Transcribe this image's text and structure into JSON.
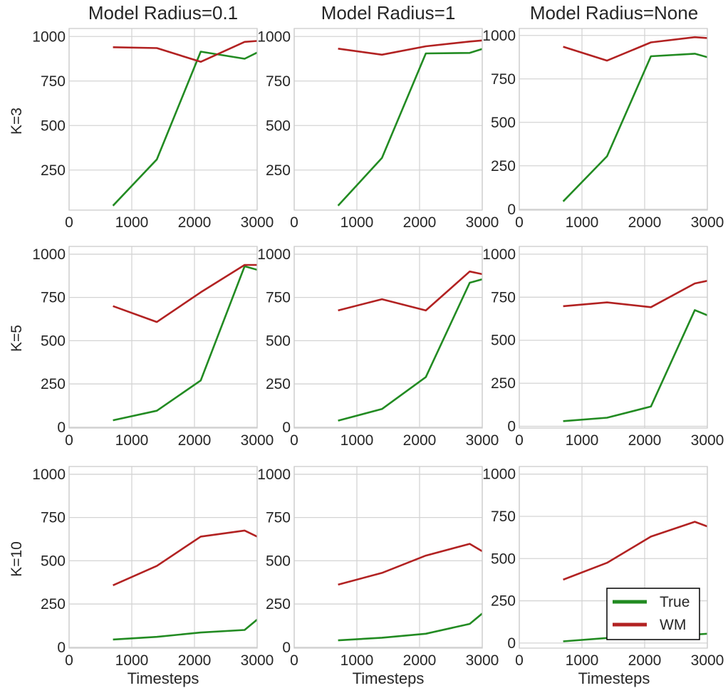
{
  "figure": {
    "col_titles": [
      "Model Radius=0.1",
      "Model Radius=1",
      "Model Radius=None"
    ],
    "row_labels": [
      "K=3",
      "K=5",
      "K=10"
    ],
    "xlabel": "Timesteps"
  },
  "legend": {
    "placement": "lower-right of bottom-right panel",
    "entries": [
      {
        "label": "True",
        "color": "#228b22"
      },
      {
        "label": "WM",
        "color": "#b22222"
      }
    ]
  },
  "chart_data": [
    {
      "type": "line",
      "title": "Model Radius=0.1",
      "ylabel": "K=3",
      "xlabel": "",
      "x": [
        700,
        1400,
        2100,
        2800,
        3000
      ],
      "series": [
        {
          "name": "True",
          "values": [
            50,
            310,
            915,
            875,
            910
          ]
        },
        {
          "name": "WM",
          "values": [
            940,
            935,
            858,
            970,
            975
          ]
        }
      ],
      "xlim": [
        0,
        3000
      ],
      "ylim": [
        25,
        1045
      ],
      "xticks": [
        0,
        1000,
        2000,
        3000
      ],
      "yticks": [
        250,
        500,
        750,
        1000
      ],
      "grid": true
    },
    {
      "type": "line",
      "title": "Model Radius=1",
      "ylabel": "",
      "xlabel": "",
      "x": [
        700,
        1400,
        2100,
        2800,
        3000
      ],
      "series": [
        {
          "name": "True",
          "values": [
            50,
            318,
            905,
            908,
            930
          ]
        },
        {
          "name": "WM",
          "values": [
            932,
            898,
            945,
            972,
            978
          ]
        }
      ],
      "xlim": [
        0,
        3000
      ],
      "ylim": [
        25,
        1045
      ],
      "xticks": [
        0,
        1000,
        2000,
        3000
      ],
      "yticks": [
        250,
        500,
        750,
        1000
      ],
      "grid": true
    },
    {
      "type": "line",
      "title": "Model Radius=None",
      "ylabel": "",
      "xlabel": "",
      "x": [
        700,
        1400,
        2100,
        2800,
        3000
      ],
      "series": [
        {
          "name": "True",
          "values": [
            45,
            305,
            880,
            895,
            875
          ]
        },
        {
          "name": "WM",
          "values": [
            935,
            855,
            960,
            990,
            985
          ]
        }
      ],
      "xlim": [
        0,
        3000
      ],
      "ylim": [
        -5,
        1040
      ],
      "xticks": [
        0,
        1000,
        2000,
        3000
      ],
      "yticks": [
        0,
        250,
        500,
        750,
        1000
      ],
      "grid": true
    },
    {
      "type": "line",
      "title": "",
      "ylabel": "K=5",
      "xlabel": "",
      "x": [
        700,
        1400,
        2100,
        2800,
        3000
      ],
      "series": [
        {
          "name": "True",
          "values": [
            40,
            95,
            270,
            930,
            910
          ]
        },
        {
          "name": "WM",
          "values": [
            700,
            608,
            780,
            938,
            938
          ]
        }
      ],
      "xlim": [
        0,
        3000
      ],
      "ylim": [
        -5,
        1045
      ],
      "xticks": [
        0,
        1000,
        2000,
        3000
      ],
      "yticks": [
        0,
        250,
        500,
        750,
        1000
      ],
      "grid": true
    },
    {
      "type": "line",
      "title": "",
      "ylabel": "",
      "xlabel": "",
      "x": [
        700,
        1400,
        2100,
        2800,
        3000
      ],
      "series": [
        {
          "name": "True",
          "values": [
            38,
            105,
            290,
            835,
            855
          ]
        },
        {
          "name": "WM",
          "values": [
            675,
            740,
            675,
            900,
            885
          ]
        }
      ],
      "xlim": [
        0,
        3000
      ],
      "ylim": [
        -5,
        1045
      ],
      "xticks": [
        0,
        1000,
        2000,
        3000
      ],
      "yticks": [
        0,
        250,
        500,
        750,
        1000
      ],
      "grid": true
    },
    {
      "type": "line",
      "title": "",
      "ylabel": "",
      "xlabel": "",
      "x": [
        700,
        1400,
        2100,
        2800,
        3000
      ],
      "series": [
        {
          "name": "True",
          "values": [
            30,
            50,
            115,
            675,
            645
          ]
        },
        {
          "name": "WM",
          "values": [
            698,
            720,
            692,
            830,
            845
          ]
        }
      ],
      "xlim": [
        0,
        3000
      ],
      "ylim": [
        -10,
        1045
      ],
      "xticks": [
        0,
        1000,
        2000,
        3000
      ],
      "yticks": [
        0,
        250,
        500,
        750,
        1000
      ],
      "grid": true
    },
    {
      "type": "line",
      "title": "",
      "ylabel": "K=10",
      "xlabel": "Timesteps",
      "x": [
        700,
        1400,
        2100,
        2800,
        3000
      ],
      "series": [
        {
          "name": "True",
          "values": [
            45,
            60,
            85,
            100,
            160
          ]
        },
        {
          "name": "WM",
          "values": [
            358,
            470,
            640,
            675,
            640
          ]
        }
      ],
      "xlim": [
        0,
        3000
      ],
      "ylim": [
        -5,
        1045
      ],
      "xticks": [
        0,
        1000,
        2000,
        3000
      ],
      "yticks": [
        0,
        250,
        500,
        750,
        1000
      ],
      "grid": true
    },
    {
      "type": "line",
      "title": "",
      "ylabel": "",
      "xlabel": "Timesteps",
      "x": [
        700,
        1400,
        2100,
        2800,
        3000
      ],
      "series": [
        {
          "name": "True",
          "values": [
            40,
            55,
            78,
            135,
            195
          ]
        },
        {
          "name": "WM",
          "values": [
            362,
            430,
            530,
            598,
            555
          ]
        }
      ],
      "xlim": [
        0,
        3000
      ],
      "ylim": [
        -5,
        1045
      ],
      "xticks": [
        0,
        1000,
        2000,
        3000
      ],
      "yticks": [
        0,
        250,
        500,
        750,
        1000
      ],
      "grid": true
    },
    {
      "type": "line",
      "title": "",
      "ylabel": "",
      "xlabel": "Timesteps",
      "x": [
        700,
        1400,
        2100,
        2800,
        3000
      ],
      "series": [
        {
          "name": "True",
          "values": [
            10,
            30,
            40,
            50,
            55
          ]
        },
        {
          "name": "WM",
          "values": [
            375,
            475,
            630,
            718,
            690
          ]
        }
      ],
      "xlim": [
        0,
        3000
      ],
      "ylim": [
        -30,
        1045
      ],
      "xticks": [
        0,
        1000,
        2000,
        3000
      ],
      "yticks": [
        0,
        250,
        500,
        750,
        1000
      ],
      "grid": true
    }
  ]
}
